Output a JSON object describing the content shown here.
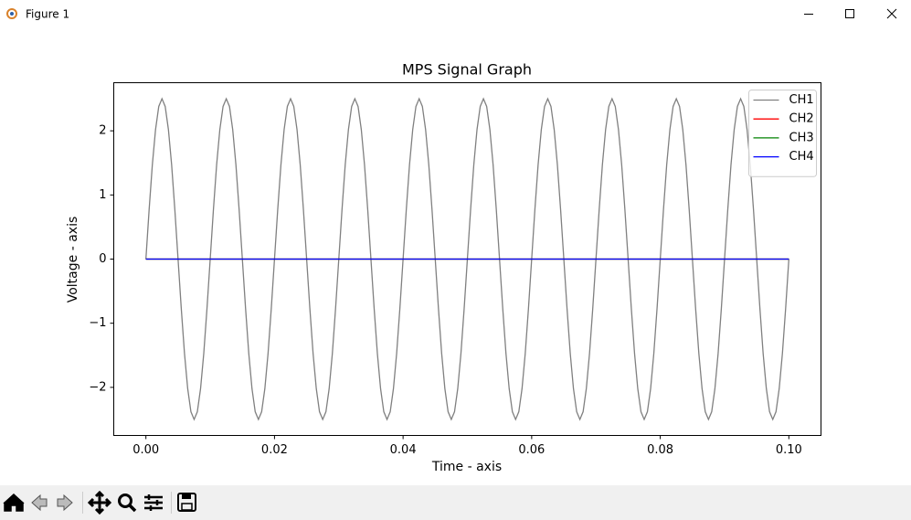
{
  "window": {
    "title": "Figure 1"
  },
  "chart_data": {
    "type": "line",
    "title": "MPS Signal Graph",
    "x_label": "Time - axis",
    "y_label": "Voltage - axis",
    "x": [
      0,
      0.0005,
      0.001,
      0.0015,
      0.002,
      0.0025,
      0.003,
      0.0035,
      0.004,
      0.0045,
      0.005,
      0.0055,
      0.006,
      0.0065,
      0.007,
      0.0075,
      0.008,
      0.0085,
      0.009,
      0.0095,
      0.01,
      0.0105,
      0.011,
      0.0115,
      0.012,
      0.0125,
      0.013,
      0.0135,
      0.014,
      0.0145,
      0.015,
      0.0155,
      0.016,
      0.0165,
      0.017,
      0.0175,
      0.018,
      0.0185,
      0.019,
      0.0195,
      0.02,
      0.0205,
      0.021,
      0.0215,
      0.022,
      0.0225,
      0.023,
      0.0235,
      0.024,
      0.0245,
      0.025,
      0.0255,
      0.026,
      0.0265,
      0.027,
      0.0275,
      0.028,
      0.0285,
      0.029,
      0.0295,
      0.03,
      0.0305,
      0.031,
      0.0315,
      0.032,
      0.0325,
      0.033,
      0.0335,
      0.034,
      0.0345,
      0.035,
      0.0355,
      0.036,
      0.0365,
      0.037,
      0.0375,
      0.038,
      0.0385,
      0.039,
      0.0395,
      0.04,
      0.0405,
      0.041,
      0.0415,
      0.042,
      0.0425,
      0.043,
      0.0435,
      0.044,
      0.0445,
      0.045,
      0.0455,
      0.046,
      0.0465,
      0.047,
      0.0475,
      0.048,
      0.0485,
      0.049,
      0.0495,
      0.05,
      0.0505,
      0.051,
      0.0515,
      0.052,
      0.0525,
      0.053,
      0.0535,
      0.054,
      0.0545,
      0.055,
      0.0555,
      0.056,
      0.0565,
      0.057,
      0.0575,
      0.058,
      0.0585,
      0.059,
      0.0595,
      0.06,
      0.0605,
      0.061,
      0.0615,
      0.062,
      0.0625,
      0.063,
      0.0635,
      0.064,
      0.0645,
      0.065,
      0.0655,
      0.066,
      0.0665,
      0.067,
      0.0675,
      0.068,
      0.0685,
      0.069,
      0.0695,
      0.07,
      0.0705,
      0.071,
      0.0715,
      0.072,
      0.0725,
      0.073,
      0.0735,
      0.074,
      0.0745,
      0.075,
      0.0755,
      0.076,
      0.0765,
      0.077,
      0.0775,
      0.078,
      0.0785,
      0.079,
      0.0795,
      0.08,
      0.0805,
      0.081,
      0.0815,
      0.082,
      0.0825,
      0.083,
      0.0835,
      0.084,
      0.0845,
      0.085,
      0.0855,
      0.086,
      0.0865,
      0.087,
      0.0875,
      0.088,
      0.0885,
      0.089,
      0.0895,
      0.09,
      0.0905,
      0.091,
      0.0915,
      0.092,
      0.0925,
      0.093,
      0.0935,
      0.094,
      0.0945,
      0.095,
      0.0955,
      0.096,
      0.0965,
      0.097,
      0.0975,
      0.098,
      0.0985,
      0.099,
      0.0995,
      0.1
    ],
    "series": [
      {
        "name": "CH1",
        "color": "#808080",
        "values": [
          0,
          0.77,
          1.47,
          2.02,
          2.38,
          2.5,
          2.38,
          2.02,
          1.47,
          0.77,
          0,
          -0.77,
          -1.47,
          -2.02,
          -2.38,
          -2.5,
          -2.38,
          -2.02,
          -1.47,
          -0.77,
          0,
          0.77,
          1.47,
          2.02,
          2.38,
          2.5,
          2.38,
          2.02,
          1.47,
          0.77,
          0,
          -0.77,
          -1.47,
          -2.02,
          -2.38,
          -2.5,
          -2.38,
          -2.02,
          -1.47,
          -0.77,
          0,
          0.77,
          1.47,
          2.02,
          2.38,
          2.5,
          2.38,
          2.02,
          1.47,
          0.77,
          0,
          -0.77,
          -1.47,
          -2.02,
          -2.38,
          -2.5,
          -2.38,
          -2.02,
          -1.47,
          -0.77,
          0,
          0.77,
          1.47,
          2.02,
          2.38,
          2.5,
          2.38,
          2.02,
          1.47,
          0.77,
          0,
          -0.77,
          -1.47,
          -2.02,
          -2.38,
          -2.5,
          -2.38,
          -2.02,
          -1.47,
          -0.77,
          0,
          0.77,
          1.47,
          2.02,
          2.38,
          2.5,
          2.38,
          2.02,
          1.47,
          0.77,
          0,
          -0.77,
          -1.47,
          -2.02,
          -2.38,
          -2.5,
          -2.38,
          -2.02,
          -1.47,
          -0.77,
          0,
          0.77,
          1.47,
          2.02,
          2.38,
          2.5,
          2.38,
          2.02,
          1.47,
          0.77,
          0,
          -0.77,
          -1.47,
          -2.02,
          -2.38,
          -2.5,
          -2.38,
          -2.02,
          -1.47,
          -0.77,
          0,
          0.77,
          1.47,
          2.02,
          2.38,
          2.5,
          2.38,
          2.02,
          1.47,
          0.77,
          0,
          -0.77,
          -1.47,
          -2.02,
          -2.38,
          -2.5,
          -2.38,
          -2.02,
          -1.47,
          -0.77,
          0,
          0.77,
          1.47,
          2.02,
          2.38,
          2.5,
          2.38,
          2.02,
          1.47,
          0.77,
          0,
          -0.77,
          -1.47,
          -2.02,
          -2.38,
          -2.5,
          -2.38,
          -2.02,
          -1.47,
          -0.77,
          0,
          0.77,
          1.47,
          2.02,
          2.38,
          2.5,
          2.38,
          2.02,
          1.47,
          0.77,
          0,
          -0.77,
          -1.47,
          -2.02,
          -2.38,
          -2.5,
          -2.38,
          -2.02,
          -1.47,
          -0.77,
          0,
          0.77,
          1.47,
          2.02,
          2.38,
          2.5,
          2.38,
          2.02,
          1.47,
          0.77,
          0,
          -0.77,
          -1.47,
          -2.02,
          -2.38,
          -2.5,
          -2.38,
          -2.02,
          -1.47,
          -0.77,
          0
        ]
      },
      {
        "name": "CH2",
        "color": "#ff0000",
        "values": [
          0,
          0,
          0,
          0,
          0,
          0,
          0,
          0,
          0,
          0,
          0,
          0,
          0,
          0,
          0,
          0,
          0,
          0,
          0,
          0,
          0,
          0,
          0,
          0,
          0,
          0,
          0,
          0,
          0,
          0,
          0,
          0,
          0,
          0,
          0,
          0,
          0,
          0,
          0,
          0,
          0,
          0,
          0,
          0,
          0,
          0,
          0,
          0,
          0,
          0,
          0,
          0,
          0,
          0,
          0,
          0,
          0,
          0,
          0,
          0,
          0,
          0,
          0,
          0,
          0,
          0,
          0,
          0,
          0,
          0,
          0,
          0,
          0,
          0,
          0,
          0,
          0,
          0,
          0,
          0,
          0,
          0,
          0,
          0,
          0,
          0,
          0,
          0,
          0,
          0,
          0,
          0,
          0,
          0,
          0,
          0,
          0,
          0,
          0,
          0,
          0,
          0,
          0,
          0,
          0,
          0,
          0,
          0,
          0,
          0,
          0,
          0,
          0,
          0,
          0,
          0,
          0,
          0,
          0,
          0,
          0,
          0,
          0,
          0,
          0,
          0,
          0,
          0,
          0,
          0,
          0,
          0,
          0,
          0,
          0,
          0,
          0,
          0,
          0,
          0,
          0,
          0,
          0,
          0,
          0,
          0,
          0,
          0,
          0,
          0,
          0,
          0,
          0,
          0,
          0,
          0,
          0,
          0,
          0,
          0,
          0,
          0,
          0,
          0,
          0,
          0,
          0,
          0,
          0,
          0,
          0,
          0,
          0,
          0,
          0,
          0,
          0,
          0,
          0,
          0,
          0,
          0,
          0,
          0,
          0,
          0,
          0,
          0,
          0,
          0,
          0,
          0,
          0,
          0,
          0,
          0,
          0,
          0,
          0,
          0,
          0
        ]
      },
      {
        "name": "CH3",
        "color": "#008000",
        "values": [
          0,
          0,
          0,
          0,
          0,
          0,
          0,
          0,
          0,
          0,
          0,
          0,
          0,
          0,
          0,
          0,
          0,
          0,
          0,
          0,
          0,
          0,
          0,
          0,
          0,
          0,
          0,
          0,
          0,
          0,
          0,
          0,
          0,
          0,
          0,
          0,
          0,
          0,
          0,
          0,
          0,
          0,
          0,
          0,
          0,
          0,
          0,
          0,
          0,
          0,
          0,
          0,
          0,
          0,
          0,
          0,
          0,
          0,
          0,
          0,
          0,
          0,
          0,
          0,
          0,
          0,
          0,
          0,
          0,
          0,
          0,
          0,
          0,
          0,
          0,
          0,
          0,
          0,
          0,
          0,
          0,
          0,
          0,
          0,
          0,
          0,
          0,
          0,
          0,
          0,
          0,
          0,
          0,
          0,
          0,
          0,
          0,
          0,
          0,
          0,
          0,
          0,
          0,
          0,
          0,
          0,
          0,
          0,
          0,
          0,
          0,
          0,
          0,
          0,
          0,
          0,
          0,
          0,
          0,
          0,
          0,
          0,
          0,
          0,
          0,
          0,
          0,
          0,
          0,
          0,
          0,
          0,
          0,
          0,
          0,
          0,
          0,
          0,
          0,
          0,
          0,
          0,
          0,
          0,
          0,
          0,
          0,
          0,
          0,
          0,
          0,
          0,
          0,
          0,
          0,
          0,
          0,
          0,
          0,
          0,
          0,
          0,
          0,
          0,
          0,
          0,
          0,
          0,
          0,
          0,
          0,
          0,
          0,
          0,
          0,
          0,
          0,
          0,
          0,
          0,
          0,
          0,
          0,
          0,
          0,
          0,
          0,
          0,
          0,
          0,
          0,
          0,
          0,
          0,
          0,
          0,
          0,
          0,
          0,
          0,
          0
        ]
      },
      {
        "name": "CH4",
        "color": "#0000ff",
        "values": [
          0,
          0,
          0,
          0,
          0,
          0,
          0,
          0,
          0,
          0,
          0,
          0,
          0,
          0,
          0,
          0,
          0,
          0,
          0,
          0,
          0,
          0,
          0,
          0,
          0,
          0,
          0,
          0,
          0,
          0,
          0,
          0,
          0,
          0,
          0,
          0,
          0,
          0,
          0,
          0,
          0,
          0,
          0,
          0,
          0,
          0,
          0,
          0,
          0,
          0,
          0,
          0,
          0,
          0,
          0,
          0,
          0,
          0,
          0,
          0,
          0,
          0,
          0,
          0,
          0,
          0,
          0,
          0,
          0,
          0,
          0,
          0,
          0,
          0,
          0,
          0,
          0,
          0,
          0,
          0,
          0,
          0,
          0,
          0,
          0,
          0,
          0,
          0,
          0,
          0,
          0,
          0,
          0,
          0,
          0,
          0,
          0,
          0,
          0,
          0,
          0,
          0,
          0,
          0,
          0,
          0,
          0,
          0,
          0,
          0,
          0,
          0,
          0,
          0,
          0,
          0,
          0,
          0,
          0,
          0,
          0,
          0,
          0,
          0,
          0,
          0,
          0,
          0,
          0,
          0,
          0,
          0,
          0,
          0,
          0,
          0,
          0,
          0,
          0,
          0,
          0,
          0,
          0,
          0,
          0,
          0,
          0,
          0,
          0,
          0,
          0,
          0,
          0,
          0,
          0,
          0,
          0,
          0,
          0,
          0,
          0,
          0,
          0,
          0,
          0,
          0,
          0,
          0,
          0,
          0,
          0,
          0,
          0,
          0,
          0,
          0,
          0,
          0,
          0,
          0,
          0,
          0,
          0,
          0,
          0,
          0,
          0,
          0,
          0,
          0,
          0,
          0,
          0,
          0,
          0,
          0,
          0,
          0,
          0,
          0,
          0
        ]
      }
    ],
    "xlim": [
      -0.005,
      0.105
    ],
    "xticks": [
      {
        "value": 0,
        "label": "0.00"
      },
      {
        "value": 0.02,
        "label": "0.02"
      },
      {
        "value": 0.04,
        "label": "0.04"
      },
      {
        "value": 0.06,
        "label": "0.06"
      },
      {
        "value": 0.08,
        "label": "0.08"
      },
      {
        "value": 0.1,
        "label": "0.10"
      }
    ],
    "ylim": [
      -2.75,
      2.75
    ],
    "yticks": [
      {
        "value": -2,
        "label": "−2"
      },
      {
        "value": -1,
        "label": "−1"
      },
      0,
      1,
      2
    ],
    "grid": false,
    "legend": "upper right"
  }
}
